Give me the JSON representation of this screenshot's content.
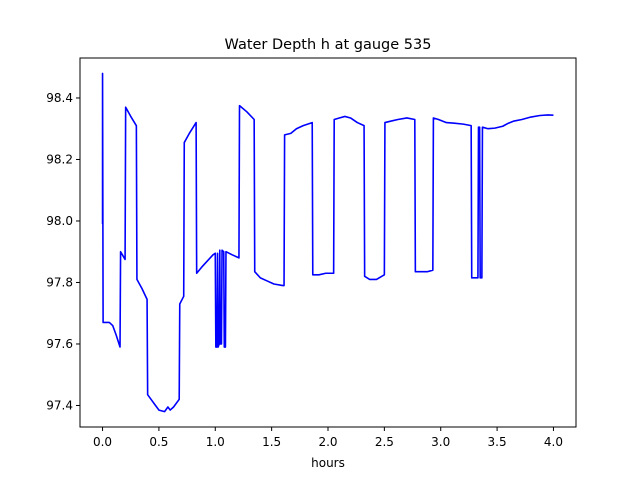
{
  "chart_data": {
    "type": "line",
    "title": "Water Depth h at gauge 535",
    "xlabel": "hours",
    "ylabel": "",
    "xlim": [
      -0.2,
      4.2
    ],
    "ylim": [
      97.33,
      98.53
    ],
    "xticks": [
      "0.0",
      "0.5",
      "1.0",
      "1.5",
      "2.0",
      "2.5",
      "3.0",
      "3.5",
      "4.0"
    ],
    "yticks": [
      "97.4",
      "97.6",
      "97.8",
      "98.0",
      "98.2",
      "98.4"
    ],
    "grid": false,
    "legend": "none",
    "series": [
      {
        "color": "#0000ff",
        "points": [
          [
            0.0,
            97.99
          ],
          [
            0.0,
            98.48
          ],
          [
            0.005,
            97.67
          ],
          [
            0.06,
            97.67
          ],
          [
            0.09,
            97.66
          ],
          [
            0.12,
            97.63
          ],
          [
            0.155,
            97.59
          ],
          [
            0.16,
            97.9
          ],
          [
            0.2,
            97.875
          ],
          [
            0.205,
            98.37
          ],
          [
            0.25,
            98.34
          ],
          [
            0.3,
            98.31
          ],
          [
            0.305,
            97.81
          ],
          [
            0.35,
            97.78
          ],
          [
            0.395,
            97.745
          ],
          [
            0.4,
            97.435
          ],
          [
            0.43,
            97.42
          ],
          [
            0.47,
            97.4
          ],
          [
            0.5,
            97.385
          ],
          [
            0.55,
            97.38
          ],
          [
            0.58,
            97.395
          ],
          [
            0.6,
            97.385
          ],
          [
            0.63,
            97.395
          ],
          [
            0.68,
            97.42
          ],
          [
            0.685,
            97.73
          ],
          [
            0.72,
            97.755
          ],
          [
            0.725,
            98.255
          ],
          [
            0.77,
            98.285
          ],
          [
            0.83,
            98.32
          ],
          [
            0.835,
            97.83
          ],
          [
            0.88,
            97.85
          ],
          [
            0.93,
            97.87
          ],
          [
            0.98,
            97.89
          ],
          [
            1.0,
            97.895
          ],
          [
            1.005,
            97.59
          ],
          [
            1.015,
            97.59
          ],
          [
            1.02,
            97.895
          ],
          [
            1.025,
            97.59
          ],
          [
            1.035,
            97.6
          ],
          [
            1.04,
            97.905
          ],
          [
            1.045,
            97.6
          ],
          [
            1.055,
            97.6
          ],
          [
            1.06,
            97.905
          ],
          [
            1.075,
            97.9
          ],
          [
            1.08,
            97.59
          ],
          [
            1.09,
            97.59
          ],
          [
            1.095,
            97.9
          ],
          [
            1.15,
            97.89
          ],
          [
            1.21,
            97.88
          ],
          [
            1.215,
            98.375
          ],
          [
            1.28,
            98.355
          ],
          [
            1.345,
            98.33
          ],
          [
            1.35,
            97.835
          ],
          [
            1.4,
            97.815
          ],
          [
            1.46,
            97.805
          ],
          [
            1.52,
            97.795
          ],
          [
            1.6,
            97.79
          ],
          [
            1.61,
            97.79
          ],
          [
            1.615,
            98.28
          ],
          [
            1.67,
            98.285
          ],
          [
            1.72,
            98.3
          ],
          [
            1.78,
            98.31
          ],
          [
            1.86,
            98.32
          ],
          [
            1.865,
            97.825
          ],
          [
            1.92,
            97.825
          ],
          [
            1.98,
            97.83
          ],
          [
            2.05,
            97.83
          ],
          [
            2.055,
            98.33
          ],
          [
            2.1,
            98.335
          ],
          [
            2.15,
            98.34
          ],
          [
            2.2,
            98.335
          ],
          [
            2.26,
            98.32
          ],
          [
            2.32,
            98.31
          ],
          [
            2.325,
            97.82
          ],
          [
            2.37,
            97.81
          ],
          [
            2.43,
            97.81
          ],
          [
            2.5,
            97.825
          ],
          [
            2.505,
            98.32
          ],
          [
            2.56,
            98.325
          ],
          [
            2.62,
            98.33
          ],
          [
            2.7,
            98.335
          ],
          [
            2.77,
            98.33
          ],
          [
            2.775,
            97.835
          ],
          [
            2.82,
            97.835
          ],
          [
            2.88,
            97.835
          ],
          [
            2.93,
            97.84
          ],
          [
            2.935,
            98.335
          ],
          [
            2.98,
            98.33
          ],
          [
            3.05,
            98.32
          ],
          [
            3.12,
            98.318
          ],
          [
            3.2,
            98.315
          ],
          [
            3.27,
            98.31
          ],
          [
            3.275,
            97.815
          ],
          [
            3.33,
            97.815
          ],
          [
            3.335,
            98.305
          ],
          [
            3.345,
            98.305
          ],
          [
            3.35,
            97.815
          ],
          [
            3.365,
            97.815
          ],
          [
            3.37,
            98.305
          ],
          [
            3.42,
            98.3
          ],
          [
            3.48,
            98.302
          ],
          [
            3.55,
            98.308
          ],
          [
            3.6,
            98.318
          ],
          [
            3.65,
            98.325
          ],
          [
            3.72,
            98.33
          ],
          [
            3.8,
            98.338
          ],
          [
            3.88,
            98.343
          ],
          [
            3.95,
            98.345
          ],
          [
            4.0,
            98.344
          ]
        ]
      }
    ]
  }
}
